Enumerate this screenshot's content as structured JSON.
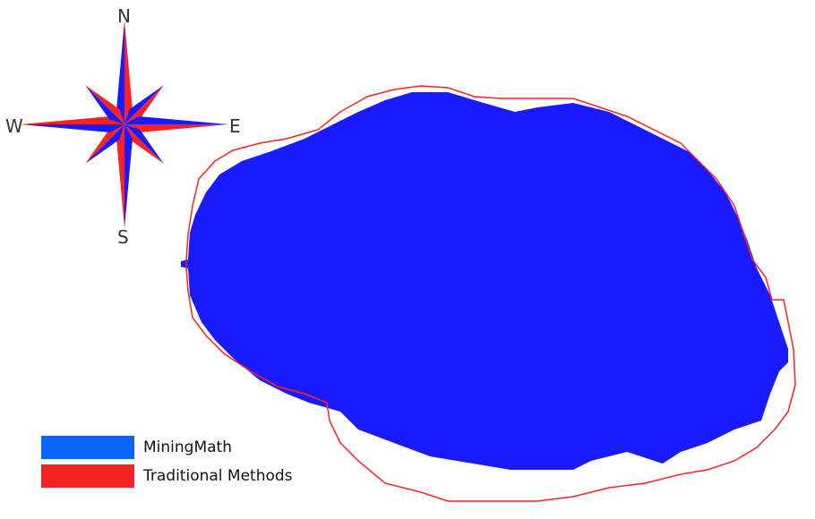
{
  "compass": {
    "north": "N",
    "south": "S",
    "east": "E",
    "west": "W"
  },
  "colors": {
    "mining_math": "#1a1aff",
    "traditional": "#ff2020",
    "legend_blue": "#0a66ff",
    "legend_red": "#f42424"
  },
  "legend": [
    {
      "label": "MiningMath",
      "color": "#0a66ff"
    },
    {
      "label": "Traditional Methods",
      "color": "#f42424"
    }
  ]
}
